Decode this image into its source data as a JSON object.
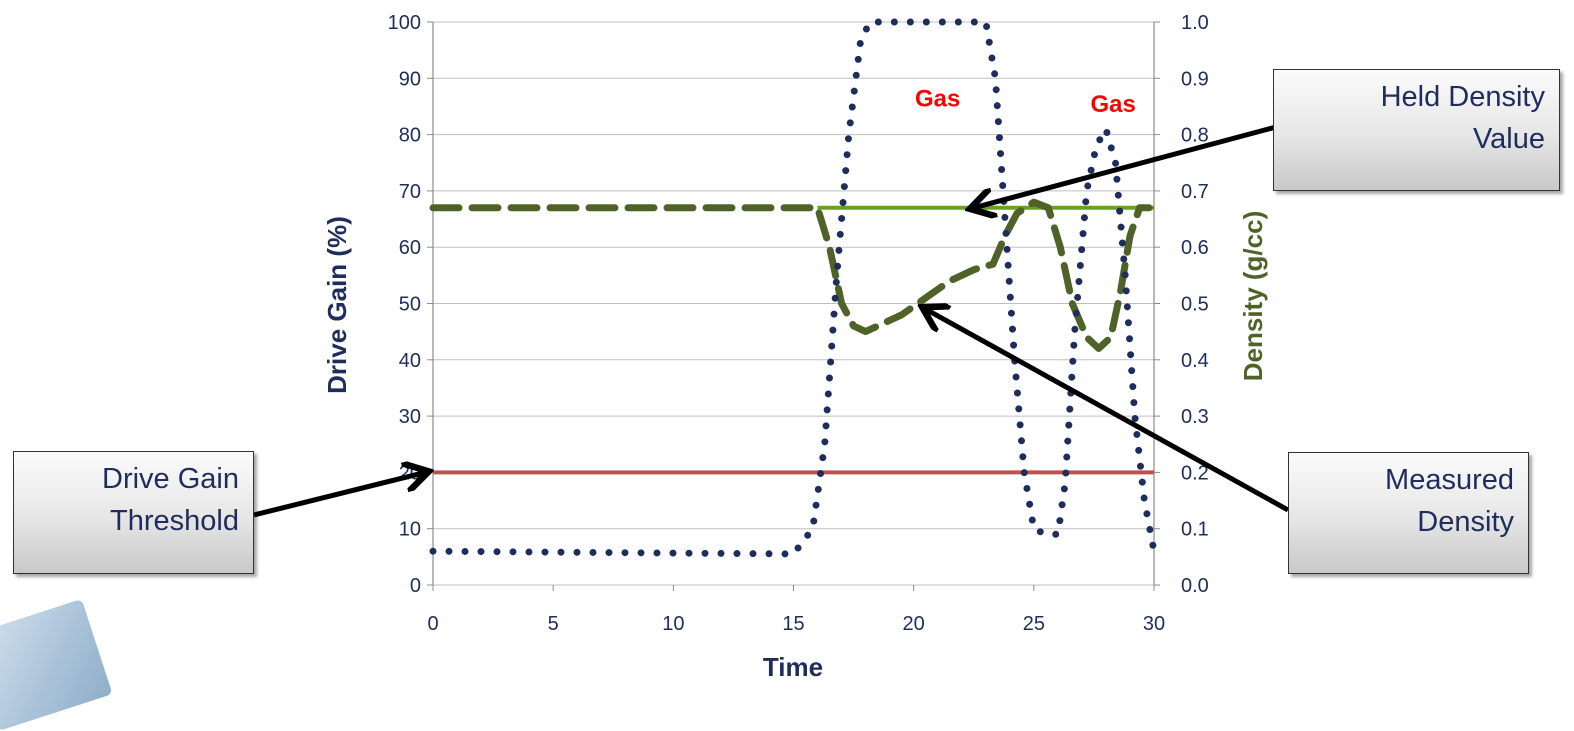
{
  "chart_data": {
    "type": "line",
    "title": "",
    "xlabel": "Time",
    "ylabel": "Drive Gain (%)",
    "y2label": "Density (g/cc)",
    "xlim": [
      0,
      30
    ],
    "ylim": [
      0,
      100
    ],
    "y2lim": [
      0.0,
      1.0
    ],
    "x_ticks": [
      "0",
      "5",
      "10",
      "15",
      "20",
      "25",
      "30"
    ],
    "y_ticks": [
      "0",
      "10",
      "20",
      "30",
      "40",
      "50",
      "60",
      "70",
      "80",
      "90",
      "100"
    ],
    "y2_ticks": [
      "0.0",
      "0.1",
      "0.2",
      "0.3",
      "0.4",
      "0.5",
      "0.6",
      "0.7",
      "0.8",
      "0.9",
      "1.0"
    ],
    "grid": "horizontal",
    "series": [
      {
        "key": "drive_gain",
        "axis": "left",
        "style": "dotted",
        "color": "#1f2d5c",
        "x": [
          0,
          15,
          15.8,
          16.3,
          16.8,
          17.3,
          17.8,
          18.2,
          19,
          20,
          21,
          22,
          23,
          23.4,
          23.8,
          24.2,
          24.6,
          25,
          25.5,
          26,
          26.3,
          26.7,
          27.2,
          27.6,
          28,
          28.4,
          28.8,
          29.2,
          29.6,
          30
        ],
        "y": [
          6,
          5.5,
          10,
          25,
          55,
          80,
          97,
          100,
          100,
          100,
          100,
          100,
          100,
          90,
          65,
          40,
          20,
          10,
          9,
          9,
          18,
          45,
          70,
          78,
          81,
          75,
          55,
          30,
          15,
          6
        ]
      },
      {
        "key": "measured_density",
        "axis": "right",
        "style": "dashed",
        "color": "#4f6228",
        "x": [
          0,
          15,
          16,
          16.5,
          17,
          17.5,
          18,
          18.5,
          19.5,
          20.5,
          21.5,
          22.5,
          23.3,
          23.8,
          24.3,
          25,
          25.6,
          26.1,
          26.6,
          27.2,
          27.7,
          28.2,
          28.6,
          29,
          29.4,
          29.8
        ],
        "y": [
          0.67,
          0.67,
          0.67,
          0.6,
          0.5,
          0.46,
          0.45,
          0.46,
          0.48,
          0.51,
          0.54,
          0.56,
          0.57,
          0.62,
          0.66,
          0.68,
          0.67,
          0.6,
          0.5,
          0.44,
          0.42,
          0.44,
          0.52,
          0.62,
          0.67,
          0.67
        ]
      },
      {
        "key": "held_density",
        "axis": "right",
        "style": "solid",
        "color": "#6aa121",
        "x": [
          16,
          30
        ],
        "y": [
          0.67,
          0.67
        ]
      },
      {
        "key": "threshold",
        "axis": "left",
        "style": "solid",
        "color": "#c0504d",
        "x": [
          0,
          30
        ],
        "y": [
          20,
          20
        ]
      }
    ],
    "annotations": [
      {
        "text": "Gas",
        "x": 21,
        "y": 85,
        "color": "#ff0000"
      },
      {
        "text": "Gas",
        "x": 28.3,
        "y": 84,
        "color": "#ff0000"
      }
    ],
    "callouts": [
      {
        "lines": [
          "Drive Gain",
          "Threshold"
        ],
        "target_x": 0,
        "target_y": 20
      },
      {
        "lines": [
          "Held Density",
          "Value"
        ],
        "target_x": 22.5,
        "target_y": 67
      },
      {
        "lines": [
          "Measured",
          "Density"
        ],
        "target_x": 20.5,
        "target_y": 49
      }
    ]
  }
}
